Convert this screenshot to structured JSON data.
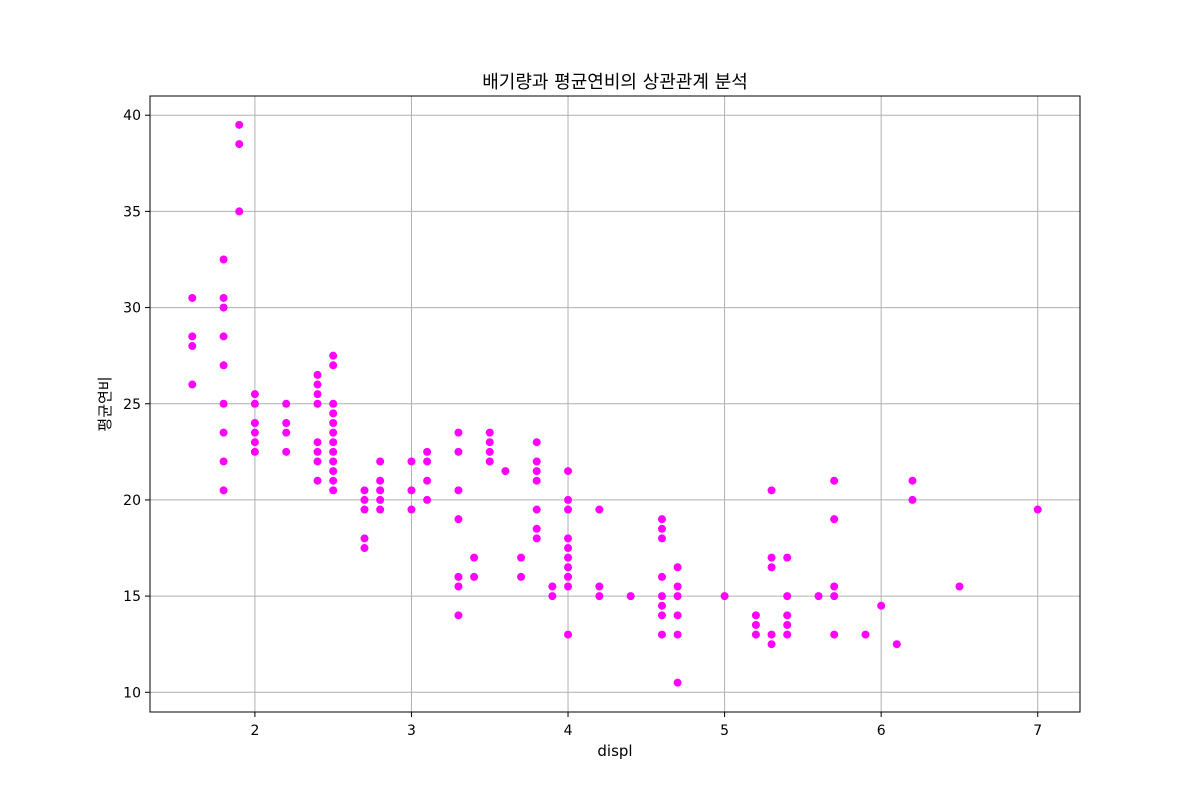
{
  "chart_data": {
    "type": "scatter",
    "title": "배기량과 평균연비의 상관관계 분석",
    "xlabel": "displ",
    "ylabel": "평균연비",
    "xlim": [
      1.33,
      7.27
    ],
    "ylim": [
      8.975,
      41.0
    ],
    "xticks": [
      2,
      3,
      4,
      5,
      6,
      7
    ],
    "yticks": [
      10,
      15,
      20,
      25,
      30,
      35,
      40
    ],
    "grid": true,
    "legend": "none",
    "marker_color": "#ff00ff",
    "points": [
      [
        1.6,
        30.5
      ],
      [
        1.6,
        28.5
      ],
      [
        1.6,
        28
      ],
      [
        1.6,
        26
      ],
      [
        1.8,
        32.5
      ],
      [
        1.8,
        30.5
      ],
      [
        1.8,
        30
      ],
      [
        1.8,
        28.5
      ],
      [
        1.8,
        27
      ],
      [
        1.8,
        25
      ],
      [
        1.8,
        23.5
      ],
      [
        1.8,
        22
      ],
      [
        1.8,
        20.5
      ],
      [
        1.9,
        39.5
      ],
      [
        1.9,
        38.5
      ],
      [
        1.9,
        35
      ],
      [
        2.0,
        25.5
      ],
      [
        2.0,
        25
      ],
      [
        2.0,
        24
      ],
      [
        2.0,
        23.5
      ],
      [
        2.0,
        23
      ],
      [
        2.0,
        22.5
      ],
      [
        2.2,
        25
      ],
      [
        2.2,
        24
      ],
      [
        2.2,
        23.5
      ],
      [
        2.2,
        22.5
      ],
      [
        2.4,
        26.5
      ],
      [
        2.4,
        26
      ],
      [
        2.4,
        25.5
      ],
      [
        2.4,
        25
      ],
      [
        2.4,
        23
      ],
      [
        2.4,
        22.5
      ],
      [
        2.4,
        22
      ],
      [
        2.4,
        21
      ],
      [
        2.5,
        27.5
      ],
      [
        2.5,
        27
      ],
      [
        2.5,
        25
      ],
      [
        2.5,
        24.5
      ],
      [
        2.5,
        24
      ],
      [
        2.5,
        23.5
      ],
      [
        2.5,
        23
      ],
      [
        2.5,
        22.5
      ],
      [
        2.5,
        22
      ],
      [
        2.5,
        21.5
      ],
      [
        2.5,
        21
      ],
      [
        2.5,
        20.5
      ],
      [
        2.7,
        20.5
      ],
      [
        2.7,
        20
      ],
      [
        2.7,
        19.5
      ],
      [
        2.7,
        18
      ],
      [
        2.7,
        17.5
      ],
      [
        2.8,
        22
      ],
      [
        2.8,
        21
      ],
      [
        2.8,
        20.5
      ],
      [
        2.8,
        20
      ],
      [
        2.8,
        19.5
      ],
      [
        3.0,
        22
      ],
      [
        3.0,
        20.5
      ],
      [
        3.0,
        19.5
      ],
      [
        3.1,
        22.5
      ],
      [
        3.1,
        22
      ],
      [
        3.1,
        21
      ],
      [
        3.1,
        20
      ],
      [
        3.3,
        23.5
      ],
      [
        3.3,
        22.5
      ],
      [
        3.3,
        20.5
      ],
      [
        3.3,
        19
      ],
      [
        3.3,
        16
      ],
      [
        3.3,
        15.5
      ],
      [
        3.3,
        14
      ],
      [
        3.4,
        17
      ],
      [
        3.4,
        16
      ],
      [
        3.5,
        23.5
      ],
      [
        3.5,
        23
      ],
      [
        3.5,
        22.5
      ],
      [
        3.5,
        22
      ],
      [
        3.6,
        21.5
      ],
      [
        3.7,
        17
      ],
      [
        3.7,
        16
      ],
      [
        3.8,
        23
      ],
      [
        3.8,
        22
      ],
      [
        3.8,
        21.5
      ],
      [
        3.8,
        21
      ],
      [
        3.8,
        19.5
      ],
      [
        3.8,
        18.5
      ],
      [
        3.8,
        18
      ],
      [
        3.9,
        15.5
      ],
      [
        3.9,
        15
      ],
      [
        4.0,
        21.5
      ],
      [
        4.0,
        20
      ],
      [
        4.0,
        19.5
      ],
      [
        4.0,
        18
      ],
      [
        4.0,
        17.5
      ],
      [
        4.0,
        17
      ],
      [
        4.0,
        16.5
      ],
      [
        4.0,
        16
      ],
      [
        4.0,
        15.5
      ],
      [
        4.0,
        13
      ],
      [
        4.2,
        19.5
      ],
      [
        4.2,
        15.5
      ],
      [
        4.2,
        15
      ],
      [
        4.4,
        15
      ],
      [
        4.6,
        19
      ],
      [
        4.6,
        18.5
      ],
      [
        4.6,
        18
      ],
      [
        4.6,
        16
      ],
      [
        4.6,
        15
      ],
      [
        4.6,
        14.5
      ],
      [
        4.6,
        14
      ],
      [
        4.6,
        13
      ],
      [
        4.7,
        16.5
      ],
      [
        4.7,
        15.5
      ],
      [
        4.7,
        15
      ],
      [
        4.7,
        14
      ],
      [
        4.7,
        13
      ],
      [
        4.7,
        10.5
      ],
      [
        5.0,
        15
      ],
      [
        5.2,
        14
      ],
      [
        5.2,
        13.5
      ],
      [
        5.2,
        13
      ],
      [
        5.3,
        20.5
      ],
      [
        5.3,
        17
      ],
      [
        5.3,
        16.5
      ],
      [
        5.3,
        13
      ],
      [
        5.3,
        12.5
      ],
      [
        5.4,
        17
      ],
      [
        5.4,
        15
      ],
      [
        5.4,
        14
      ],
      [
        5.4,
        13.5
      ],
      [
        5.4,
        13
      ],
      [
        5.6,
        15
      ],
      [
        5.7,
        21
      ],
      [
        5.7,
        19
      ],
      [
        5.7,
        15.5
      ],
      [
        5.7,
        15
      ],
      [
        5.7,
        13
      ],
      [
        5.9,
        13
      ],
      [
        6.0,
        14.5
      ],
      [
        6.1,
        12.5
      ],
      [
        6.2,
        21
      ],
      [
        6.2,
        20
      ],
      [
        6.5,
        15.5
      ],
      [
        7.0,
        19.5
      ]
    ]
  }
}
